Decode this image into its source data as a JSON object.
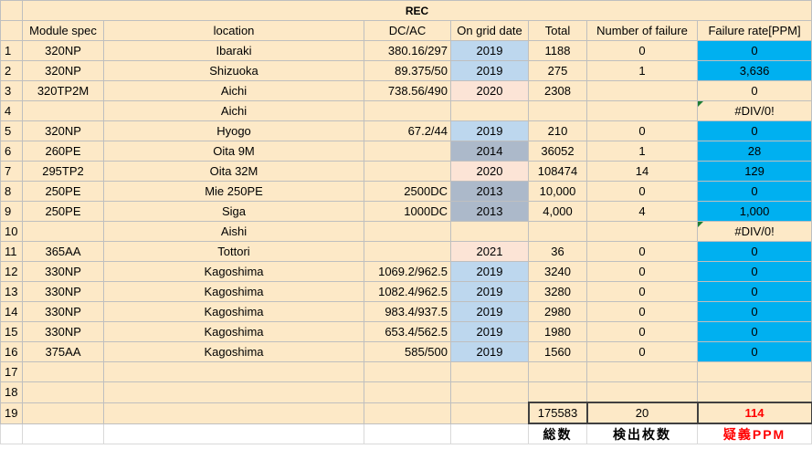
{
  "sheet": {
    "title": "REC",
    "headers": [
      "Module spec",
      "location",
      "DC/AC",
      "On grid date",
      "Total",
      "Number of failure",
      "Failure rate[PPM]"
    ],
    "rows": [
      {
        "n": "1",
        "spec": "320NP",
        "loc": "Ibaraki",
        "dcac": "380.16/297",
        "year": "2019",
        "yc": "blue",
        "total": "1188",
        "fail": "0",
        "rate": "0",
        "rc": "blue",
        "tri": false
      },
      {
        "n": "2",
        "spec": "320NP",
        "loc": "Shizuoka",
        "dcac": "89.375/50",
        "year": "2019",
        "yc": "blue",
        "total": "275",
        "fail": "1",
        "rate": "3,636",
        "rc": "blue",
        "tri": false
      },
      {
        "n": "3",
        "spec": "320TP2M",
        "loc": "Aichi",
        "dcac": "738.56/490",
        "year": "2020",
        "yc": "pink",
        "total": "2308",
        "fail": "",
        "rate": "0",
        "rc": "",
        "tri": false
      },
      {
        "n": "4",
        "spec": "",
        "loc": "Aichi",
        "dcac": "",
        "year": "",
        "yc": "",
        "total": "",
        "fail": "",
        "rate": "#DIV/0!",
        "rc": "",
        "tri": true
      },
      {
        "n": "5",
        "spec": "320NP",
        "loc": "Hyogo",
        "dcac": "67.2/44",
        "year": "2019",
        "yc": "blue",
        "total": "210",
        "fail": "0",
        "rate": "0",
        "rc": "blue",
        "tri": false
      },
      {
        "n": "6",
        "spec": "260PE",
        "loc": "Oita 9M",
        "dcac": "",
        "year": "2014",
        "yc": "gray",
        "total": "36052",
        "fail": "1",
        "rate": "28",
        "rc": "blue",
        "tri": false
      },
      {
        "n": "7",
        "spec": "295TP2",
        "loc": "Oita 32M",
        "dcac": "",
        "year": "2020",
        "yc": "pink",
        "total": "108474",
        "fail": "14",
        "rate": "129",
        "rc": "blue",
        "tri": false
      },
      {
        "n": "8",
        "spec": "250PE",
        "loc": "Mie 250PE",
        "dcac": "2500DC",
        "year": "2013",
        "yc": "gray",
        "total": "10,000",
        "fail": "0",
        "rate": "0",
        "rc": "blue",
        "tri": false
      },
      {
        "n": "9",
        "spec": "250PE",
        "loc": "Siga",
        "dcac": "1000DC",
        "year": "2013",
        "yc": "gray",
        "total": "4,000",
        "fail": "4",
        "rate": "1,000",
        "rc": "blue",
        "tri": false
      },
      {
        "n": "10",
        "spec": "",
        "loc": "Aishi",
        "dcac": "",
        "year": "",
        "yc": "",
        "total": "",
        "fail": "",
        "rate": "#DIV/0!",
        "rc": "",
        "tri": true
      },
      {
        "n": "11",
        "spec": "365AA",
        "loc": "Tottori",
        "dcac": "",
        "year": "2021",
        "yc": "pink",
        "total": "36",
        "fail": "0",
        "rate": "0",
        "rc": "blue",
        "tri": false
      },
      {
        "n": "12",
        "spec": "330NP",
        "loc": "Kagoshima",
        "dcac": "1069.2/962.5",
        "year": "2019",
        "yc": "blue",
        "total": "3240",
        "fail": "0",
        "rate": "0",
        "rc": "blue",
        "tri": false
      },
      {
        "n": "13",
        "spec": "330NP",
        "loc": "Kagoshima",
        "dcac": "1082.4/962.5",
        "year": "2019",
        "yc": "blue",
        "total": "3280",
        "fail": "0",
        "rate": "0",
        "rc": "blue",
        "tri": false
      },
      {
        "n": "14",
        "spec": "330NP",
        "loc": "Kagoshima",
        "dcac": "983.4/937.5",
        "year": "2019",
        "yc": "blue",
        "total": "2980",
        "fail": "0",
        "rate": "0",
        "rc": "blue",
        "tri": false
      },
      {
        "n": "15",
        "spec": "330NP",
        "loc": "Kagoshima",
        "dcac": "653.4/562.5",
        "year": "2019",
        "yc": "blue",
        "total": "1980",
        "fail": "0",
        "rate": "0",
        "rc": "blue",
        "tri": false
      },
      {
        "n": "16",
        "spec": "375AA",
        "loc": "Kagoshima",
        "dcac": "585/500",
        "year": "2019",
        "yc": "blue",
        "total": "1560",
        "fail": "0",
        "rate": "0",
        "rc": "blue",
        "tri": false
      },
      {
        "n": "17",
        "spec": "",
        "loc": "",
        "dcac": "",
        "year": "",
        "yc": "",
        "total": "",
        "fail": "",
        "rate": "",
        "rc": "",
        "tri": false
      },
      {
        "n": "18",
        "spec": "",
        "loc": "",
        "dcac": "",
        "year": "",
        "yc": "",
        "total": "",
        "fail": "",
        "rate": "",
        "rc": "",
        "tri": false
      }
    ],
    "summary": {
      "n": "19",
      "total": "175583",
      "fail": "20",
      "ppm": "114"
    },
    "footer": {
      "total_label": "総数",
      "fail_label": "検出枚数",
      "ppm_label": "疑義PPM"
    },
    "colors": {
      "cell": "#fde9c7",
      "year_blue": "#bdd7ee",
      "year_pink": "#fce4d6",
      "year_gray": "#acb9ca",
      "rate_blue": "#00b0f0",
      "ppm_red": "#ff0000"
    }
  }
}
